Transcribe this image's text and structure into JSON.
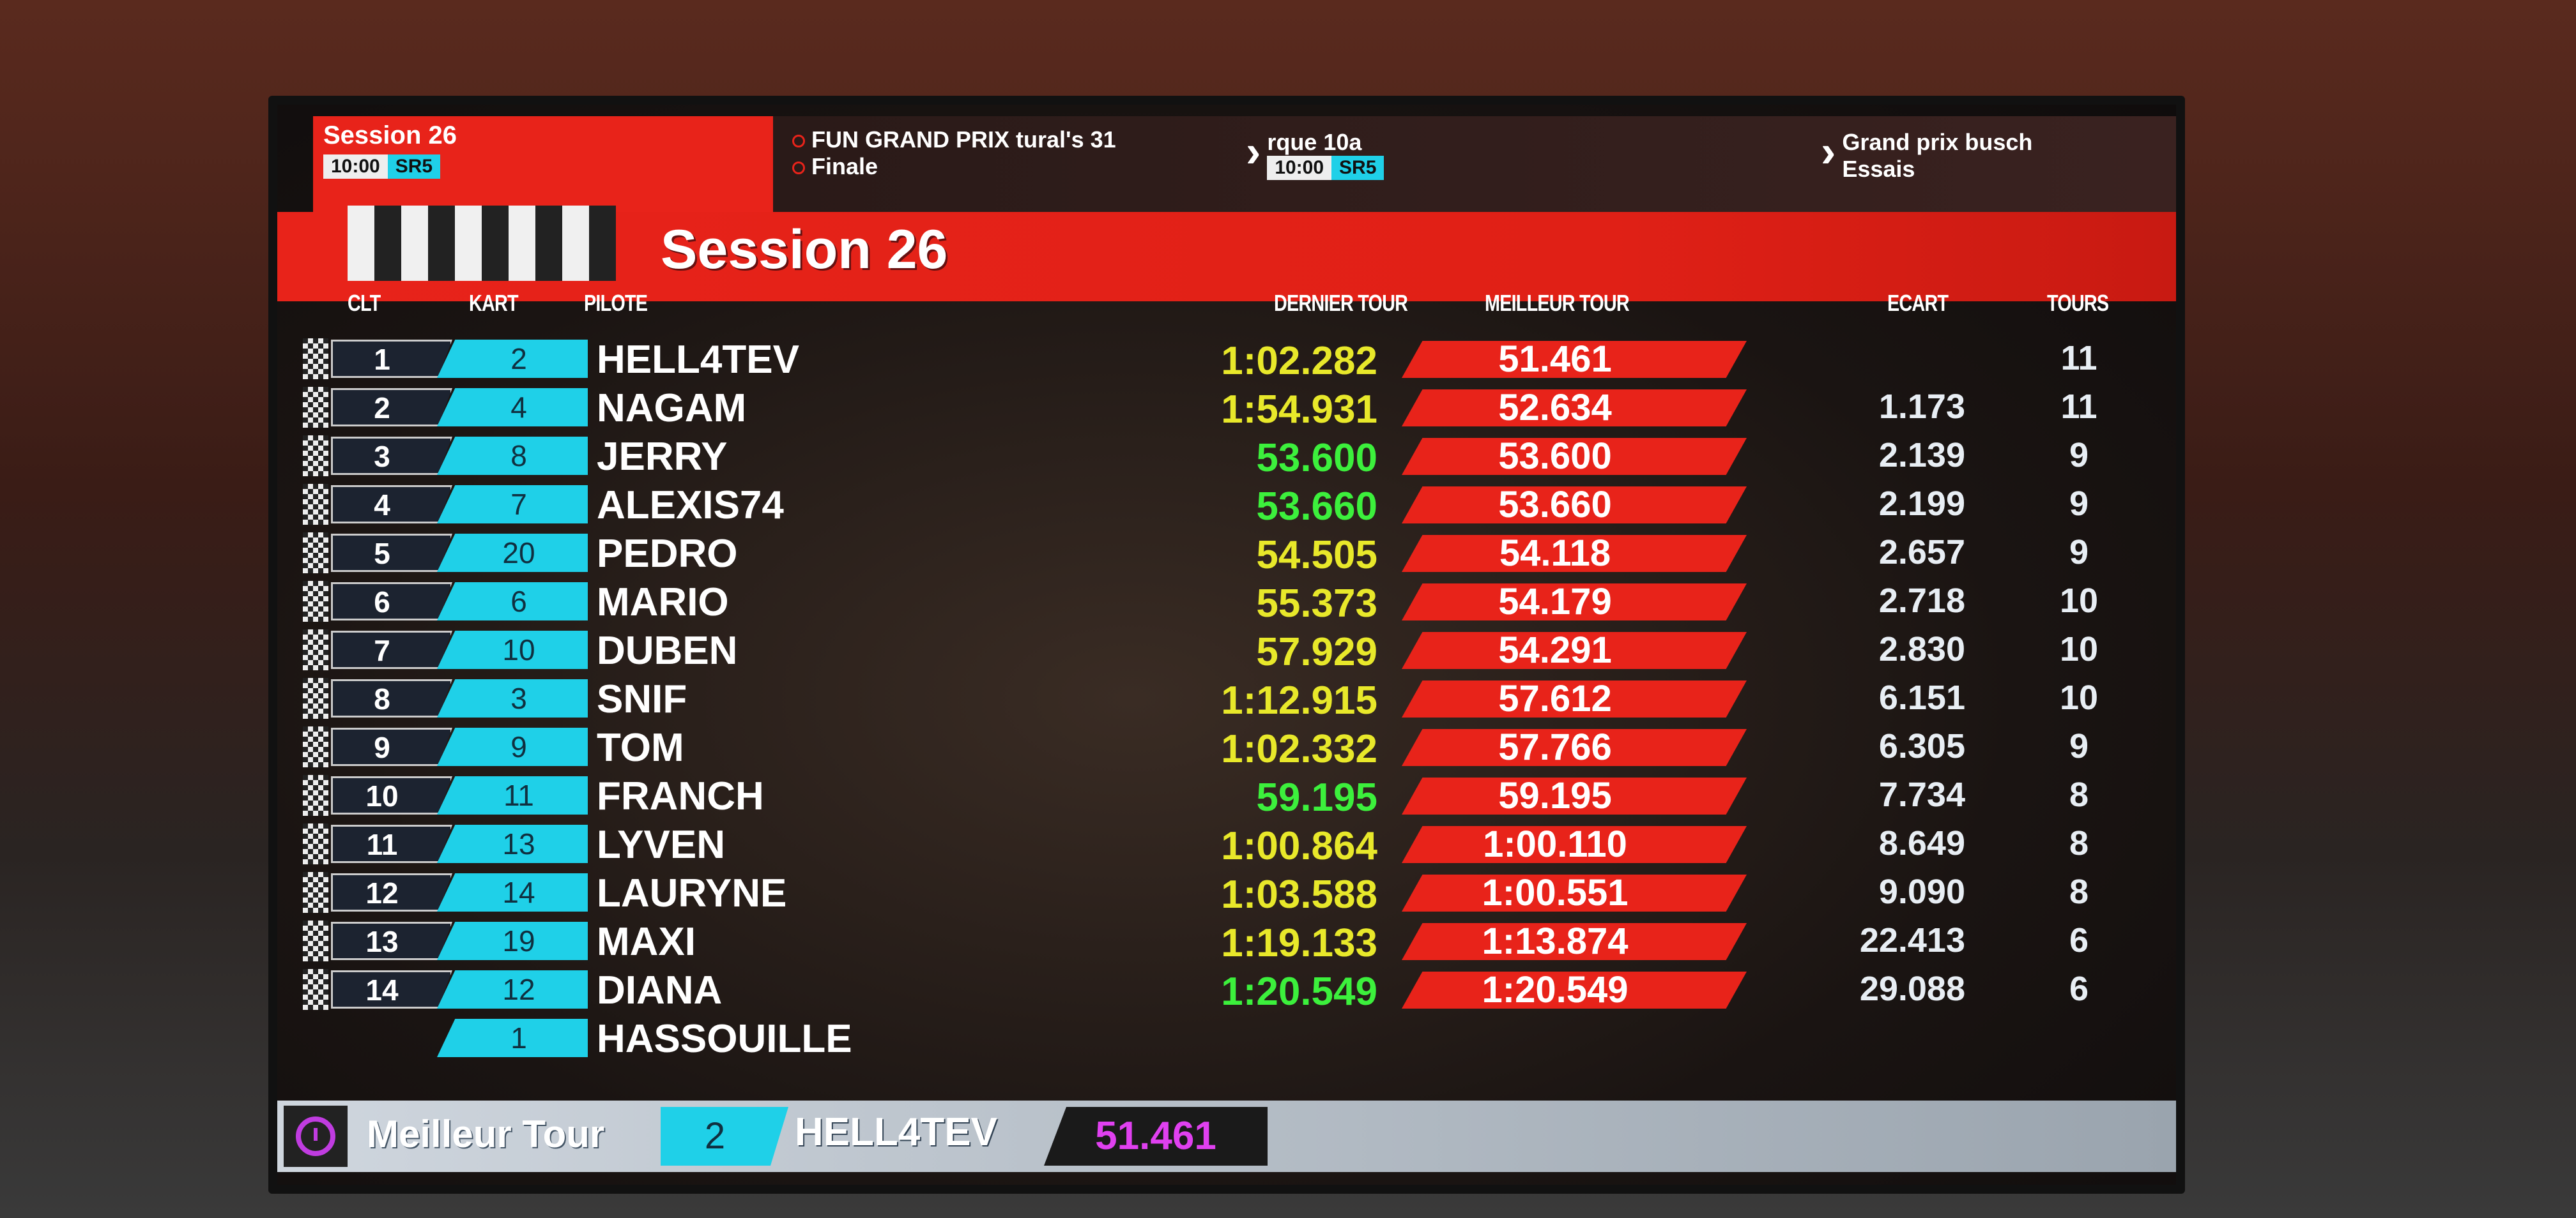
{
  "top_left": {
    "session": "Session 26",
    "time": "10:00",
    "mode": "SR5"
  },
  "schedule": [
    {
      "lines": [
        "FUN GRAND PRIX tural's 31",
        "Finale"
      ]
    },
    {
      "lines": [
        "rque 10a"
      ],
      "time": "10:00",
      "mode": "SR5"
    },
    {
      "lines": [
        "Grand prix busch",
        "Essais"
      ]
    }
  ],
  "title": "Session 26",
  "headers": {
    "clt": "CLT",
    "kart": "KART",
    "pilote": "PILOTE",
    "dernier": "DERNIER TOUR",
    "meilleur": "MEILLEUR TOUR",
    "ecart": "ECART",
    "tours": "TOURS"
  },
  "colors": {
    "red": "#e8231a",
    "cyan": "#1fd0e8",
    "last_lap_normal": "#e8e82a",
    "last_lap_personal_best": "#3cf03c",
    "best_lap_overall": "#e040f0"
  },
  "rows": [
    {
      "clt": "1",
      "kart": "2",
      "pilote": "HELL4TEV",
      "dernier": "1:02.282",
      "dernier_best": false,
      "meilleur": "51.461",
      "ecart": "",
      "tours": "11"
    },
    {
      "clt": "2",
      "kart": "4",
      "pilote": "NAGAM",
      "dernier": "1:54.931",
      "dernier_best": false,
      "meilleur": "52.634",
      "ecart": "1.173",
      "tours": "11"
    },
    {
      "clt": "3",
      "kart": "8",
      "pilote": "JERRY",
      "dernier": "53.600",
      "dernier_best": true,
      "meilleur": "53.600",
      "ecart": "2.139",
      "tours": "9"
    },
    {
      "clt": "4",
      "kart": "7",
      "pilote": "ALEXIS74",
      "dernier": "53.660",
      "dernier_best": true,
      "meilleur": "53.660",
      "ecart": "2.199",
      "tours": "9"
    },
    {
      "clt": "5",
      "kart": "20",
      "pilote": "PEDRO",
      "dernier": "54.505",
      "dernier_best": false,
      "meilleur": "54.118",
      "ecart": "2.657",
      "tours": "9"
    },
    {
      "clt": "6",
      "kart": "6",
      "pilote": "MARIO",
      "dernier": "55.373",
      "dernier_best": false,
      "meilleur": "54.179",
      "ecart": "2.718",
      "tours": "10"
    },
    {
      "clt": "7",
      "kart": "10",
      "pilote": "DUBEN",
      "dernier": "57.929",
      "dernier_best": false,
      "meilleur": "54.291",
      "ecart": "2.830",
      "tours": "10"
    },
    {
      "clt": "8",
      "kart": "3",
      "pilote": "SNIF",
      "dernier": "1:12.915",
      "dernier_best": false,
      "meilleur": "57.612",
      "ecart": "6.151",
      "tours": "10"
    },
    {
      "clt": "9",
      "kart": "9",
      "pilote": "TOM",
      "dernier": "1:02.332",
      "dernier_best": false,
      "meilleur": "57.766",
      "ecart": "6.305",
      "tours": "9"
    },
    {
      "clt": "10",
      "kart": "11",
      "pilote": "FRANCH",
      "dernier": "59.195",
      "dernier_best": true,
      "meilleur": "59.195",
      "ecart": "7.734",
      "tours": "8"
    },
    {
      "clt": "11",
      "kart": "13",
      "pilote": "LYVEN",
      "dernier": "1:00.864",
      "dernier_best": false,
      "meilleur": "1:00.110",
      "ecart": "8.649",
      "tours": "8"
    },
    {
      "clt": "12",
      "kart": "14",
      "pilote": "LAURYNE",
      "dernier": "1:03.588",
      "dernier_best": false,
      "meilleur": "1:00.551",
      "ecart": "9.090",
      "tours": "8"
    },
    {
      "clt": "13",
      "kart": "19",
      "pilote": "MAXI",
      "dernier": "1:19.133",
      "dernier_best": false,
      "meilleur": "1:13.874",
      "ecart": "22.413",
      "tours": "6"
    },
    {
      "clt": "14",
      "kart": "12",
      "pilote": "DIANA",
      "dernier": "1:20.549",
      "dernier_best": true,
      "meilleur": "1:20.549",
      "ecart": "29.088",
      "tours": "6"
    },
    {
      "clt": "",
      "kart": "1",
      "pilote": "HASSOUILLE",
      "dernier": "",
      "dernier_best": false,
      "meilleur": "",
      "ecart": "",
      "tours": ""
    }
  ],
  "best_lap": {
    "label": "Meilleur Tour",
    "kart": "2",
    "pilote": "HELL4TEV",
    "time": "51.461",
    "icon": "stopwatch-icon"
  }
}
